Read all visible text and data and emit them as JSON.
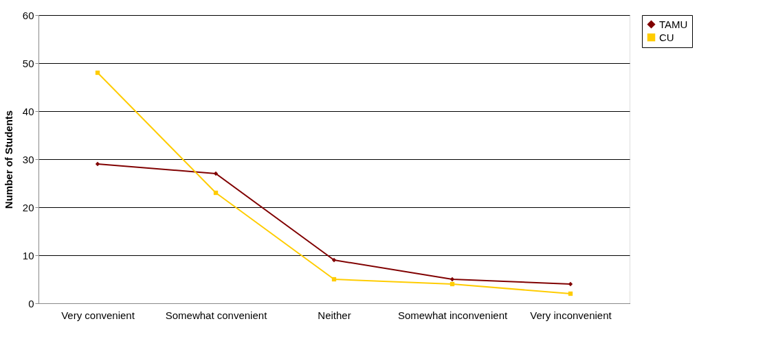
{
  "chart_data": {
    "type": "line",
    "ylabel": "Number of Students",
    "categories": [
      "Very convenient",
      "Somewhat convenient",
      "Neither",
      "Somewhat inconvenient",
      "Very inconvenient"
    ],
    "series": [
      {
        "name": "TAMU",
        "color": "#800000",
        "marker": "diamond",
        "values": [
          29,
          27,
          9,
          5,
          4
        ]
      },
      {
        "name": "CU",
        "color": "#ffcc00",
        "marker": "square",
        "values": [
          48,
          23,
          5,
          4,
          2
        ]
      }
    ],
    "ylim": [
      0,
      60
    ],
    "yticks": [
      0,
      10,
      20,
      30,
      40,
      50,
      60
    ],
    "grid": "y",
    "legend": "right"
  }
}
